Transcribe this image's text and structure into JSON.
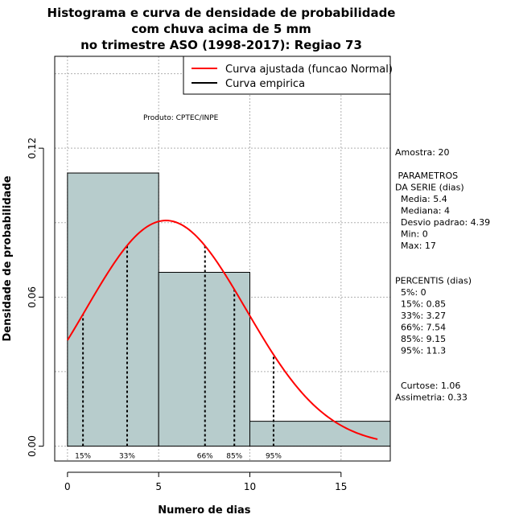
{
  "chart_data": {
    "type": "bar",
    "title_lines": [
      "Histograma e curva de densidade de probabilidade",
      "com chuva acima de 5 mm",
      "no trimestre ASO (1998-2017): Regiao 73"
    ],
    "xlabel": "Numero de dias",
    "ylabel": "Densidade de probabilidade",
    "xlim": [
      -0.7,
      17.7
    ],
    "ylim": [
      -0.006,
      0.157
    ],
    "x_ticks": [
      0,
      5,
      10,
      15
    ],
    "y_ticks": [
      0.0,
      0.06,
      0.12
    ],
    "y_tick_labels": [
      "0.00",
      "0.06",
      "0.12"
    ],
    "bins": [
      {
        "start": 0,
        "end": 5,
        "density": 0.11
      },
      {
        "start": 5,
        "end": 10,
        "density": 0.07
      },
      {
        "start": 10,
        "end": 17.7,
        "density": 0.01
      }
    ],
    "bar_color": "#b7cccc",
    "normal_curve": {
      "mean": 5.4,
      "sd": 4.39,
      "x_from": 0,
      "x_to": 17,
      "color": "#ff0000"
    },
    "percentile_lines": [
      {
        "label": "15%",
        "x": 0.85
      },
      {
        "label": "33%",
        "x": 3.27
      },
      {
        "label": "66%",
        "x": 7.54
      },
      {
        "label": "85%",
        "x": 9.15
      },
      {
        "label": "95%",
        "x": 11.3
      }
    ],
    "legend": {
      "position": "top-right",
      "entries": [
        {
          "label": "Curva ajustada (funcao Normal)",
          "color": "#ff0000"
        },
        {
          "label": "Curva empirica",
          "color": "#000000"
        }
      ]
    },
    "grid": true,
    "annotation": "Produto: CPTEC/INPE"
  },
  "stats_panel": {
    "lines": [
      "Amostra: 20",
      "",
      " PARAMETROS",
      "DA SERIE (dias)",
      "  Media: 5.4",
      "  Mediana: 4",
      "  Desvio padrao: 4.39",
      "  Min: 0",
      "  Max: 17",
      "",
      "",
      "PERCENTIS (dias)",
      "  5%: 0",
      "  15%: 0.85",
      "  33%: 3.27",
      "  66%: 7.54",
      "  85%: 9.15",
      "  95%: 11.3",
      "",
      "",
      "  Curtose: 1.06",
      "Assimetria: 0.33"
    ]
  }
}
